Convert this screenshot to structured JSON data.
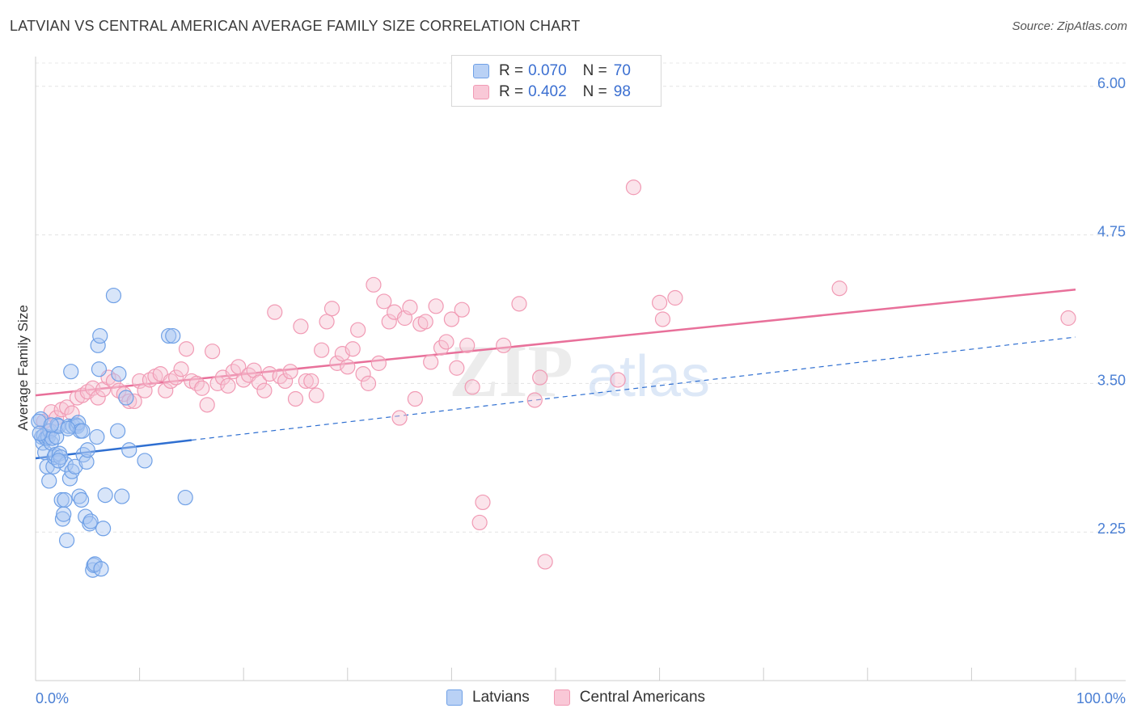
{
  "title": "LATVIAN VS CENTRAL AMERICAN AVERAGE FAMILY SIZE CORRELATION CHART",
  "source": "Source: ZipAtlas.com",
  "watermark": {
    "zip": "ZIP",
    "atlas": "atlas"
  },
  "legend": {
    "rows": [
      {
        "r_label": "R =",
        "r_value": "0.070",
        "n_label": "N =",
        "n_value": "70"
      },
      {
        "r_label": "R =",
        "r_value": "0.402",
        "n_label": "N =",
        "n_value": "98"
      }
    ]
  },
  "bottom_legend": {
    "latvians": "Latvians",
    "central_americans": "Central Americans"
  },
  "chart_data": {
    "type": "scatter",
    "title": "LATVIAN VS CENTRAL AMERICAN AVERAGE FAMILY SIZE CORRELATION CHART",
    "xlabel": "",
    "ylabel": "Average Family Size",
    "xlim": [
      0,
      100
    ],
    "ylim": [
      1.0,
      6.25
    ],
    "x_tick_labels": [
      "0.0%",
      "100.0%"
    ],
    "y_ticks": [
      2.25,
      3.5,
      4.75,
      6.0
    ],
    "y_tick_labels": [
      "2.25",
      "3.50",
      "4.75",
      "6.00"
    ],
    "colors": {
      "latvians": "#6fa0e6",
      "central_americans": "#f19ab4",
      "latvian_line": "#2f6fd1",
      "central_line": "#e8709a"
    },
    "series": [
      {
        "name": "Latvians",
        "trend": {
          "x0": 0,
          "y0": 2.87,
          "x1": 100,
          "y1": 3.89,
          "solid_until": 15
        },
        "points": [
          [
            0.5,
            3.2
          ],
          [
            0.6,
            3.05
          ],
          [
            0.7,
            3.0
          ],
          [
            0.8,
            3.06
          ],
          [
            0.9,
            2.92
          ],
          [
            1.0,
            3.04
          ],
          [
            1.1,
            2.8
          ],
          [
            1.2,
            3.05
          ],
          [
            1.3,
            2.68
          ],
          [
            1.4,
            3.1
          ],
          [
            1.5,
            3.0
          ],
          [
            1.6,
            3.04
          ],
          [
            1.7,
            2.8
          ],
          [
            1.8,
            2.88
          ],
          [
            1.9,
            2.9
          ],
          [
            2.0,
            3.05
          ],
          [
            2.1,
            3.15
          ],
          [
            2.2,
            3.14
          ],
          [
            2.3,
            2.91
          ],
          [
            2.5,
            2.52
          ],
          [
            2.6,
            2.36
          ],
          [
            2.7,
            2.4
          ],
          [
            2.8,
            2.52
          ],
          [
            2.9,
            2.82
          ],
          [
            3.0,
            2.18
          ],
          [
            3.2,
            3.14
          ],
          [
            3.3,
            2.7
          ],
          [
            3.4,
            3.6
          ],
          [
            3.5,
            2.76
          ],
          [
            3.6,
            3.14
          ],
          [
            3.8,
            2.8
          ],
          [
            3.9,
            3.15
          ],
          [
            4.0,
            3.14
          ],
          [
            4.1,
            3.17
          ],
          [
            4.2,
            2.55
          ],
          [
            4.3,
            3.1
          ],
          [
            4.4,
            2.52
          ],
          [
            4.5,
            3.1
          ],
          [
            4.6,
            2.9
          ],
          [
            4.8,
            2.38
          ],
          [
            4.9,
            2.84
          ],
          [
            5.0,
            2.94
          ],
          [
            5.2,
            2.32
          ],
          [
            5.3,
            2.34
          ],
          [
            5.5,
            1.93
          ],
          [
            5.6,
            1.97
          ],
          [
            5.7,
            1.98
          ],
          [
            5.9,
            3.05
          ],
          [
            6.0,
            3.82
          ],
          [
            6.1,
            3.62
          ],
          [
            6.2,
            3.9
          ],
          [
            6.3,
            1.94
          ],
          [
            6.5,
            2.28
          ],
          [
            6.7,
            2.56
          ],
          [
            7.5,
            4.24
          ],
          [
            7.9,
            3.1
          ],
          [
            8.0,
            3.58
          ],
          [
            8.3,
            2.55
          ],
          [
            9.0,
            2.94
          ],
          [
            10.5,
            2.85
          ],
          [
            12.8,
            3.9
          ],
          [
            13.2,
            3.9
          ],
          [
            14.4,
            2.54
          ],
          [
            8.7,
            3.38
          ],
          [
            0.3,
            3.18
          ],
          [
            0.4,
            3.08
          ],
          [
            2.4,
            2.88
          ],
          [
            3.1,
            3.12
          ],
          [
            1.5,
            3.15
          ],
          [
            2.2,
            2.85
          ]
        ]
      },
      {
        "name": "Central Americans",
        "trend": {
          "x0": 0,
          "y0": 3.4,
          "x1": 100,
          "y1": 4.29
        },
        "points": [
          [
            0.8,
            3.18
          ],
          [
            1.2,
            3.1
          ],
          [
            1.5,
            3.26
          ],
          [
            2.0,
            3.21
          ],
          [
            2.5,
            3.28
          ],
          [
            3.0,
            3.3
          ],
          [
            3.5,
            3.25
          ],
          [
            4.0,
            3.38
          ],
          [
            4.5,
            3.4
          ],
          [
            5.0,
            3.43
          ],
          [
            5.5,
            3.46
          ],
          [
            6.0,
            3.38
          ],
          [
            6.5,
            3.45
          ],
          [
            7.0,
            3.55
          ],
          [
            7.5,
            3.52
          ],
          [
            8.0,
            3.44
          ],
          [
            8.5,
            3.41
          ],
          [
            9.0,
            3.35
          ],
          [
            9.5,
            3.35
          ],
          [
            10.0,
            3.52
          ],
          [
            10.5,
            3.44
          ],
          [
            11.0,
            3.53
          ],
          [
            11.5,
            3.56
          ],
          [
            12.0,
            3.58
          ],
          [
            12.5,
            3.44
          ],
          [
            13.0,
            3.52
          ],
          [
            13.5,
            3.55
          ],
          [
            14.0,
            3.62
          ],
          [
            14.5,
            3.79
          ],
          [
            15.0,
            3.52
          ],
          [
            15.5,
            3.5
          ],
          [
            16.0,
            3.46
          ],
          [
            16.5,
            3.32
          ],
          [
            17.0,
            3.77
          ],
          [
            17.5,
            3.5
          ],
          [
            18.0,
            3.55
          ],
          [
            18.5,
            3.48
          ],
          [
            19.0,
            3.6
          ],
          [
            19.5,
            3.64
          ],
          [
            20.0,
            3.53
          ],
          [
            20.5,
            3.57
          ],
          [
            21.0,
            3.61
          ],
          [
            21.5,
            3.51
          ],
          [
            22.0,
            3.44
          ],
          [
            22.5,
            3.58
          ],
          [
            23.0,
            4.1
          ],
          [
            23.5,
            3.56
          ],
          [
            24.0,
            3.52
          ],
          [
            24.5,
            3.6
          ],
          [
            25.0,
            3.37
          ],
          [
            25.5,
            3.98
          ],
          [
            26.0,
            3.52
          ],
          [
            26.5,
            3.52
          ],
          [
            27.0,
            3.4
          ],
          [
            27.5,
            3.78
          ],
          [
            28.0,
            4.02
          ],
          [
            28.5,
            4.13
          ],
          [
            29.0,
            3.67
          ],
          [
            29.5,
            3.75
          ],
          [
            30.0,
            3.64
          ],
          [
            30.5,
            3.79
          ],
          [
            31.0,
            3.95
          ],
          [
            31.5,
            3.58
          ],
          [
            32.0,
            3.5
          ],
          [
            32.5,
            4.33
          ],
          [
            33.0,
            3.67
          ],
          [
            33.5,
            4.19
          ],
          [
            34.0,
            4.02
          ],
          [
            34.5,
            4.1
          ],
          [
            35.0,
            3.21
          ],
          [
            35.5,
            4.05
          ],
          [
            36.0,
            4.14
          ],
          [
            36.5,
            3.37
          ],
          [
            37.0,
            4.0
          ],
          [
            37.5,
            4.02
          ],
          [
            38.0,
            3.68
          ],
          [
            38.5,
            4.15
          ],
          [
            39.0,
            3.8
          ],
          [
            39.5,
            3.85
          ],
          [
            40.0,
            4.04
          ],
          [
            40.5,
            3.63
          ],
          [
            41.0,
            4.12
          ],
          [
            41.5,
            3.82
          ],
          [
            42.0,
            3.47
          ],
          [
            43.0,
            2.5
          ],
          [
            42.7,
            2.33
          ],
          [
            45.0,
            3.82
          ],
          [
            46.5,
            4.17
          ],
          [
            48.0,
            3.36
          ],
          [
            48.5,
            3.55
          ],
          [
            49.0,
            2.0
          ],
          [
            56.0,
            3.53
          ],
          [
            57.5,
            5.15
          ],
          [
            60.0,
            4.18
          ],
          [
            60.3,
            4.04
          ],
          [
            61.5,
            4.22
          ],
          [
            77.3,
            4.3
          ],
          [
            99.3,
            4.05
          ]
        ]
      }
    ]
  }
}
